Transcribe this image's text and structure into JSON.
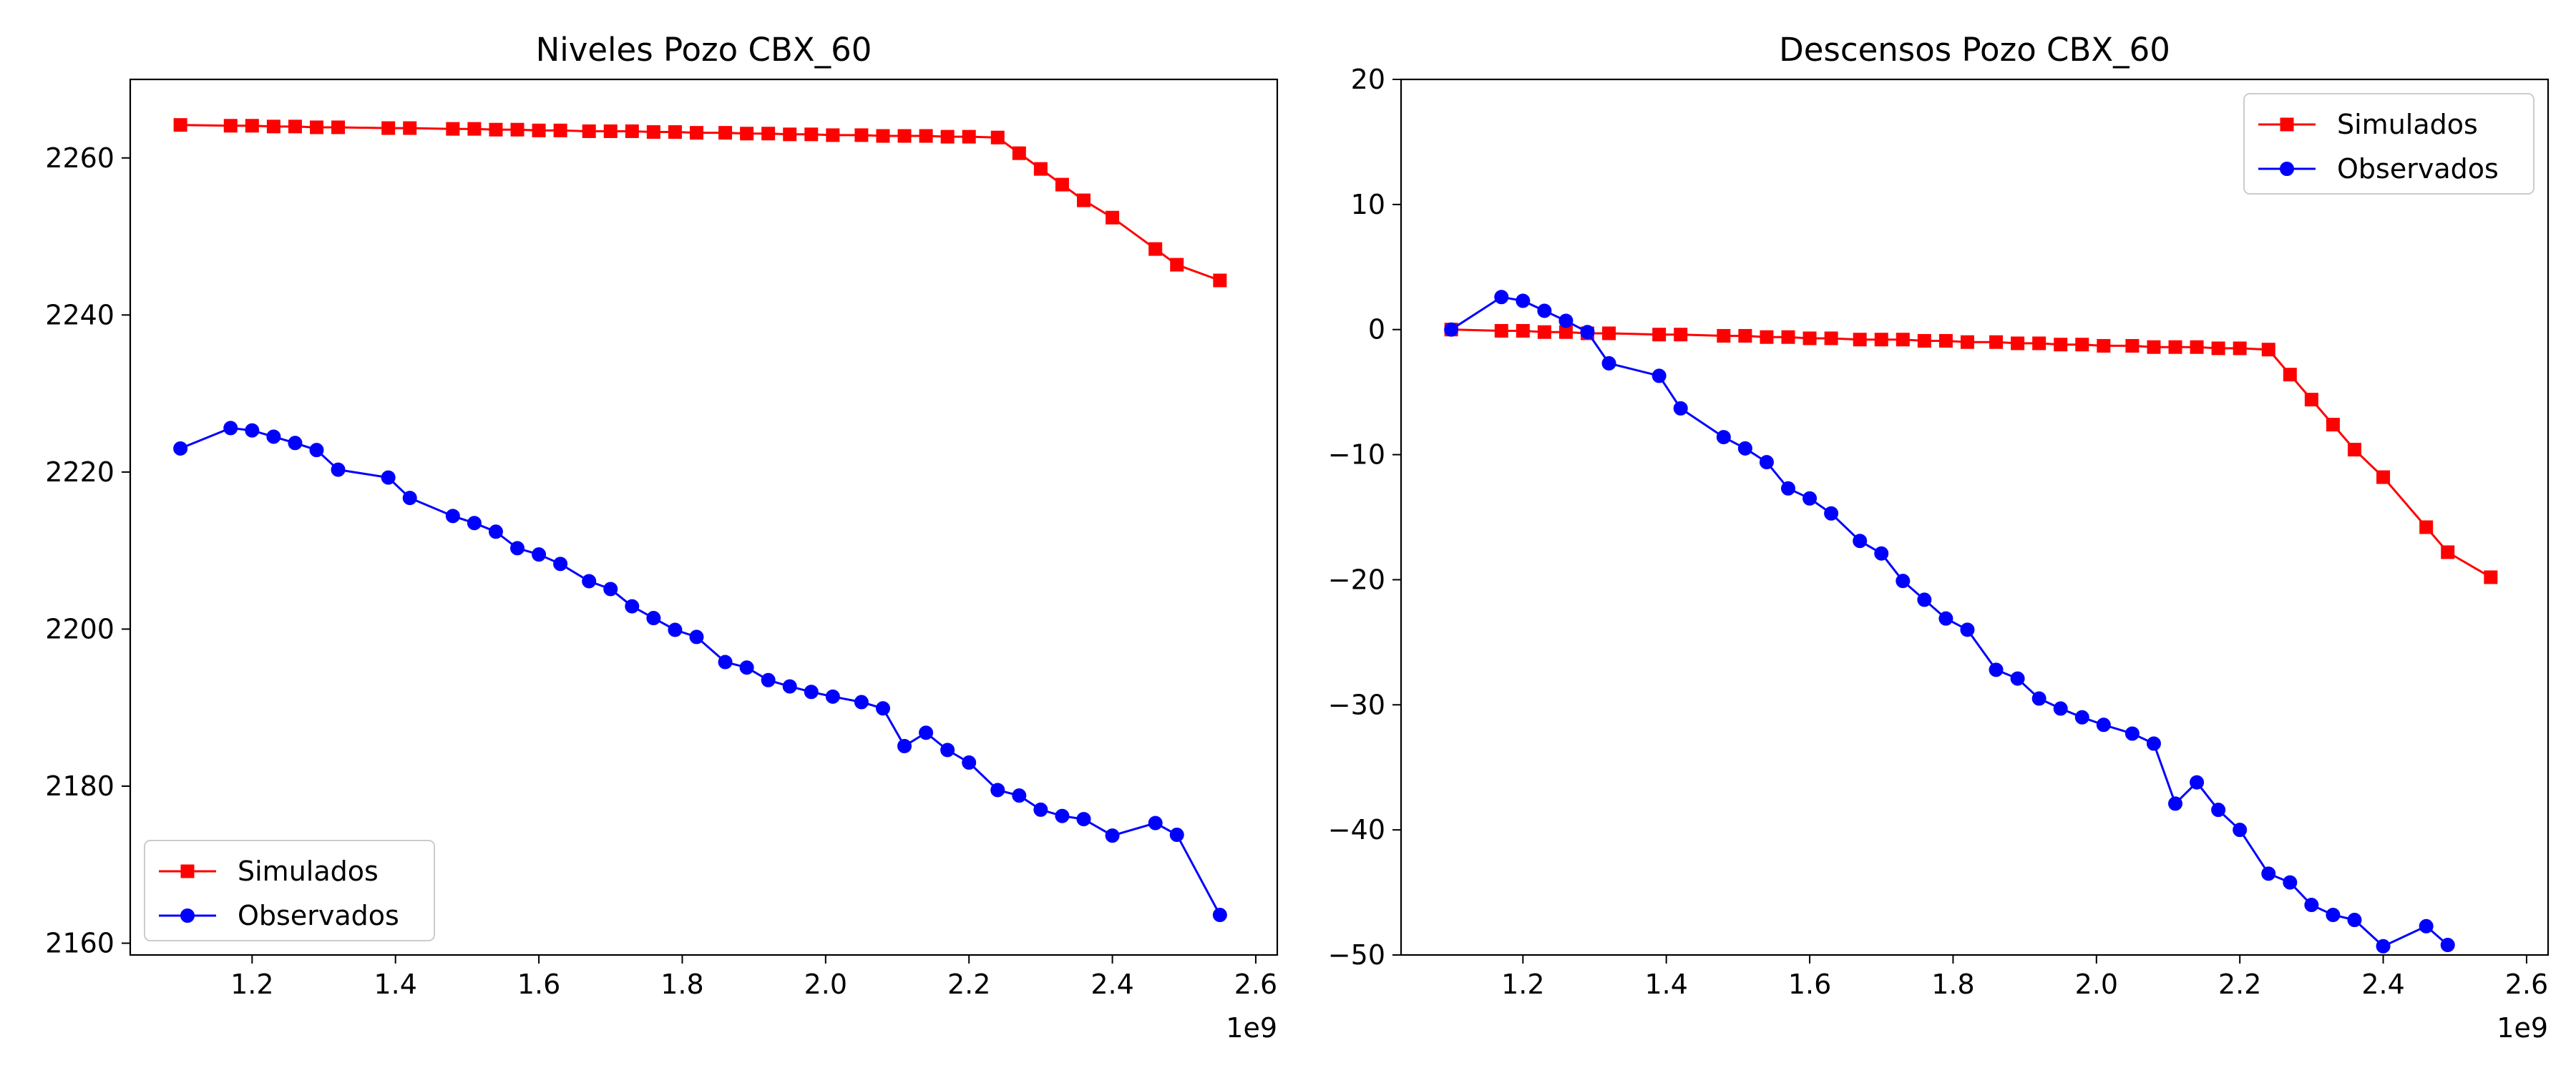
{
  "chart_data": [
    {
      "type": "line",
      "title": "Niveles Pozo CBX_60",
      "xlabel": "",
      "ylabel": "",
      "x_offset_label": "1e9",
      "xlim": [
        1.03,
        2.63
      ],
      "ylim": [
        2158.5,
        2270
      ],
      "xticks": [
        1.2,
        1.4,
        1.6,
        1.8,
        2.0,
        2.2,
        2.4,
        2.6
      ],
      "yticks": [
        2160,
        2180,
        2200,
        2220,
        2240,
        2260
      ],
      "grid": false,
      "legend": "lower-left",
      "series": [
        {
          "name": "Simulados",
          "color": "#ff0000",
          "marker": "square",
          "x": [
            1.1,
            1.17,
            1.2,
            1.23,
            1.26,
            1.29,
            1.32,
            1.39,
            1.42,
            1.48,
            1.51,
            1.54,
            1.57,
            1.6,
            1.63,
            1.67,
            1.7,
            1.73,
            1.76,
            1.79,
            1.82,
            1.86,
            1.89,
            1.92,
            1.95,
            1.98,
            2.01,
            2.05,
            2.08,
            2.11,
            2.14,
            2.17,
            2.2,
            2.24,
            2.27,
            2.3,
            2.33,
            2.36,
            2.4,
            2.46,
            2.49,
            2.55
          ],
          "y": [
            2264.2,
            2264.1,
            2264.1,
            2264.0,
            2264.0,
            2263.9,
            2263.9,
            2263.8,
            2263.8,
            2263.7,
            2263.7,
            2263.6,
            2263.6,
            2263.5,
            2263.5,
            2263.4,
            2263.4,
            2263.4,
            2263.3,
            2263.3,
            2263.2,
            2263.2,
            2263.1,
            2263.1,
            2263.0,
            2263.0,
            2262.9,
            2262.9,
            2262.8,
            2262.8,
            2262.8,
            2262.7,
            2262.7,
            2262.6,
            2260.6,
            2258.6,
            2256.6,
            2254.6,
            2252.4,
            2248.4,
            2246.4,
            2244.4
          ]
        },
        {
          "name": "Observados",
          "color": "#0000ff",
          "marker": "circle",
          "x": [
            1.1,
            1.17,
            1.2,
            1.23,
            1.26,
            1.29,
            1.32,
            1.39,
            1.42,
            1.48,
            1.51,
            1.54,
            1.57,
            1.6,
            1.63,
            1.67,
            1.7,
            1.73,
            1.76,
            1.79,
            1.82,
            1.86,
            1.89,
            1.92,
            1.95,
            1.98,
            2.01,
            2.05,
            2.08,
            2.11,
            2.14,
            2.17,
            2.2,
            2.24,
            2.27,
            2.3,
            2.33,
            2.36,
            2.4,
            2.46,
            2.49,
            2.55
          ],
          "y": [
            2223.0,
            2225.6,
            2225.3,
            2224.5,
            2223.7,
            2222.8,
            2220.3,
            2219.3,
            2216.7,
            2214.4,
            2213.5,
            2212.4,
            2210.3,
            2209.5,
            2208.3,
            2206.1,
            2205.1,
            2202.9,
            2201.4,
            2199.9,
            2199.0,
            2195.8,
            2195.1,
            2193.5,
            2192.7,
            2192.0,
            2191.4,
            2190.7,
            2189.9,
            2185.1,
            2186.8,
            2184.6,
            2183.0,
            2179.5,
            2178.8,
            2177.0,
            2176.2,
            2175.8,
            2173.7,
            2175.3,
            2173.8,
            2163.6
          ]
        }
      ]
    },
    {
      "type": "line",
      "title": "Descensos Pozo CBX_60",
      "xlabel": "",
      "ylabel": "",
      "x_offset_label": "1e9",
      "xlim": [
        1.03,
        2.63
      ],
      "ylim": [
        -50,
        20
      ],
      "xticks": [
        1.2,
        1.4,
        1.6,
        1.8,
        2.0,
        2.2,
        2.4,
        2.6
      ],
      "yticks": [
        -50,
        -40,
        -30,
        -20,
        -10,
        0,
        10,
        20
      ],
      "ytick_labels": [
        "−50",
        "−40",
        "−30",
        "−20",
        "−10",
        "0",
        "10",
        "20"
      ],
      "grid": false,
      "legend": "upper-right",
      "series": [
        {
          "name": "Simulados",
          "color": "#ff0000",
          "marker": "square",
          "x": [
            1.1,
            1.17,
            1.2,
            1.23,
            1.26,
            1.29,
            1.32,
            1.39,
            1.42,
            1.48,
            1.51,
            1.54,
            1.57,
            1.6,
            1.63,
            1.67,
            1.7,
            1.73,
            1.76,
            1.79,
            1.82,
            1.86,
            1.89,
            1.92,
            1.95,
            1.98,
            2.01,
            2.05,
            2.08,
            2.11,
            2.14,
            2.17,
            2.2,
            2.24,
            2.27,
            2.3,
            2.33,
            2.36,
            2.4,
            2.46,
            2.49,
            2.55
          ],
          "y": [
            0.0,
            -0.1,
            -0.1,
            -0.2,
            -0.2,
            -0.3,
            -0.3,
            -0.4,
            -0.4,
            -0.5,
            -0.5,
            -0.6,
            -0.6,
            -0.7,
            -0.7,
            -0.8,
            -0.8,
            -0.8,
            -0.9,
            -0.9,
            -1.0,
            -1.0,
            -1.1,
            -1.1,
            -1.2,
            -1.2,
            -1.3,
            -1.3,
            -1.4,
            -1.4,
            -1.4,
            -1.5,
            -1.5,
            -1.6,
            -3.6,
            -5.6,
            -7.6,
            -9.6,
            -11.8,
            -15.8,
            -17.8,
            -19.8
          ]
        },
        {
          "name": "Observados",
          "color": "#0000ff",
          "marker": "circle",
          "x": [
            1.1,
            1.17,
            1.2,
            1.23,
            1.26,
            1.29,
            1.32,
            1.39,
            1.42,
            1.48,
            1.51,
            1.54,
            1.57,
            1.6,
            1.63,
            1.67,
            1.7,
            1.73,
            1.76,
            1.79,
            1.82,
            1.86,
            1.89,
            1.92,
            1.95,
            1.98,
            2.01,
            2.05,
            2.08,
            2.11,
            2.14,
            2.17,
            2.2,
            2.24,
            2.27,
            2.3,
            2.33,
            2.36,
            2.4,
            2.46,
            2.49
          ],
          "y": [
            0.0,
            2.6,
            2.3,
            1.5,
            0.7,
            -0.2,
            -2.7,
            -3.7,
            -6.3,
            -8.6,
            -9.5,
            -10.6,
            -12.7,
            -13.5,
            -14.7,
            -16.9,
            -17.9,
            -20.1,
            -21.6,
            -23.1,
            -24.0,
            -27.2,
            -27.9,
            -29.5,
            -30.3,
            -31.0,
            -31.6,
            -32.3,
            -33.1,
            -37.9,
            -36.2,
            -38.4,
            -40.0,
            -43.5,
            -44.2,
            -46.0,
            -46.8,
            -47.2,
            -49.3,
            -47.7,
            -49.2
          ]
        }
      ]
    }
  ]
}
